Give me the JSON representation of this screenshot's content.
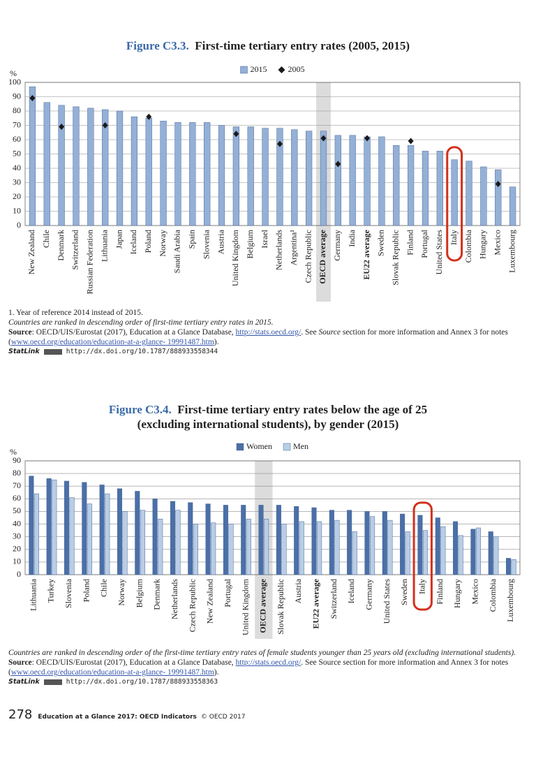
{
  "chart_data": [
    {
      "type": "bar",
      "figure": "Figure C3.3.",
      "title": "First-time tertiary entry rates (2005, 2015)",
      "y_label": "%",
      "categories": [
        "New Zealand",
        "Chile",
        "Denmark",
        "Switzerland",
        "Russian Federation",
        "Lithuania",
        "Japan",
        "Iceland",
        "Poland",
        "Norway",
        "Saudi Arabia",
        "Spain",
        "Slovenia",
        "Austria",
        "United Kingdom",
        "Belgium",
        "Israel",
        "Netherlands",
        "Argentina¹",
        "Czech Republic",
        "OECD average",
        "Germany",
        "India",
        "EU22 average",
        "Sweden",
        "Slovak Republic",
        "Finland",
        "Portugal",
        "United States",
        "Italy",
        "Colombia",
        "Hungary",
        "Mexico",
        "Luxembourg"
      ],
      "series": [
        {
          "name": "2015",
          "kind": "bar",
          "color": "#94b0d6",
          "values": [
            97,
            86,
            84,
            83,
            82,
            81,
            80,
            76,
            75,
            73,
            72,
            72,
            72,
            70,
            69,
            69,
            68,
            68,
            67,
            66,
            66,
            63,
            63,
            62,
            62,
            56,
            56,
            52,
            52,
            46,
            45,
            41,
            39,
            27
          ]
        },
        {
          "name": "2005",
          "kind": "diamond",
          "color": "#1a1a1a",
          "values": [
            89,
            null,
            69,
            null,
            null,
            70,
            null,
            null,
            76,
            null,
            null,
            null,
            null,
            null,
            64,
            null,
            null,
            57,
            null,
            null,
            61,
            43,
            null,
            61,
            null,
            null,
            59,
            null,
            null,
            null,
            null,
            null,
            29,
            null
          ]
        }
      ],
      "ylim": [
        0,
        100
      ],
      "yticks": [
        0,
        10,
        20,
        30,
        40,
        50,
        60,
        70,
        80,
        90,
        100
      ],
      "grid": true,
      "bold_categories": [
        20,
        23
      ],
      "shaded_category": 20,
      "circled_category": 29,
      "notes": {
        "footnote": "1. Year of reference 2014 instead of 2015.",
        "ranking": "Countries are ranked in descending order of first-time tertiary entry rates in 2015.",
        "source_label": "Source",
        "source_1": ": OECD/UIS/Eurostat (2017), Education at a Glance Database, ",
        "source_link_1": "http://stats.oecd.org/",
        "source_2": ". See ",
        "source_italic": "Source",
        "source_3": " section for more information and Annex 3 for notes (",
        "source_link_2": "www.oecd.org/education/education-at-a-glance- 19991487.htm",
        "source_4": ").",
        "statlink": "StatLink",
        "statlink_url": "http://dx.doi.org/10.1787/888933558344"
      }
    },
    {
      "type": "bar",
      "figure": "Figure C3.4.",
      "title": [
        "First-time tertiary entry rates below the age of 25",
        "(excluding international students), by gender (2015)"
      ],
      "y_label": "%",
      "categories": [
        "Lithuania",
        "Turkey",
        "Slovenia",
        "Poland",
        "Chile",
        "Norway",
        "Belgium",
        "Denmark",
        "Netherlands",
        "Czech Republic",
        "New Zealand",
        "Portugal",
        "United Kingdom",
        "OECD average",
        "Slovak Republic",
        "Austria",
        "EU22 average",
        "Switzerland",
        "Iceland",
        "Germany",
        "United States",
        "Sweden",
        "Italy",
        "Finland",
        "Hungary",
        "Mexico",
        "Colombia",
        "Luxembourg"
      ],
      "series": [
        {
          "name": "Women",
          "kind": "bar",
          "color": "#4b6fa8",
          "values": [
            78,
            76,
            74,
            73,
            71,
            68,
            66,
            60,
            58,
            57,
            56,
            55,
            55,
            55,
            55,
            54,
            53,
            51,
            51,
            50,
            50,
            48,
            47,
            45,
            42,
            36,
            34,
            13
          ]
        },
        {
          "name": "Men",
          "kind": "bar",
          "color": "#b9cde6",
          "values": [
            64,
            75,
            61,
            56,
            64,
            50,
            51,
            44,
            51,
            40,
            41,
            40,
            44,
            44,
            40,
            42,
            42,
            43,
            34,
            46,
            43,
            34,
            35,
            38,
            31,
            37,
            30,
            12
          ]
        }
      ],
      "ylim": [
        0,
        90
      ],
      "yticks": [
        0,
        10,
        20,
        30,
        40,
        50,
        60,
        70,
        80,
        90
      ],
      "grid": true,
      "bold_categories": [
        13,
        16
      ],
      "shaded_category": 13,
      "circled_category": 22,
      "notes": {
        "ranking": "Countries are ranked in descending order of the first-time tertiary entry rates of female students younger than 25 years old (excluding international students).",
        "source_label": "Source",
        "source_1": ": OECD/UIS/Eurostat (2017), Education at a Glance Database, ",
        "source_link_1": "http://stats.oecd.org/",
        "source_2": ". See Source section for more information and Annex 3 for notes (",
        "source_link_2": "www.oecd.org/education/education-at-a-glance- 19991487.htm",
        "source_4": ").",
        "statlink": "StatLink",
        "statlink_url": "http://dx.doi.org/10.1787/888933558363"
      }
    }
  ],
  "footer": {
    "page": "278",
    "publication": "Education at a Glance 2017: OECD Indicators",
    "copyright": "© OECD 2017"
  }
}
